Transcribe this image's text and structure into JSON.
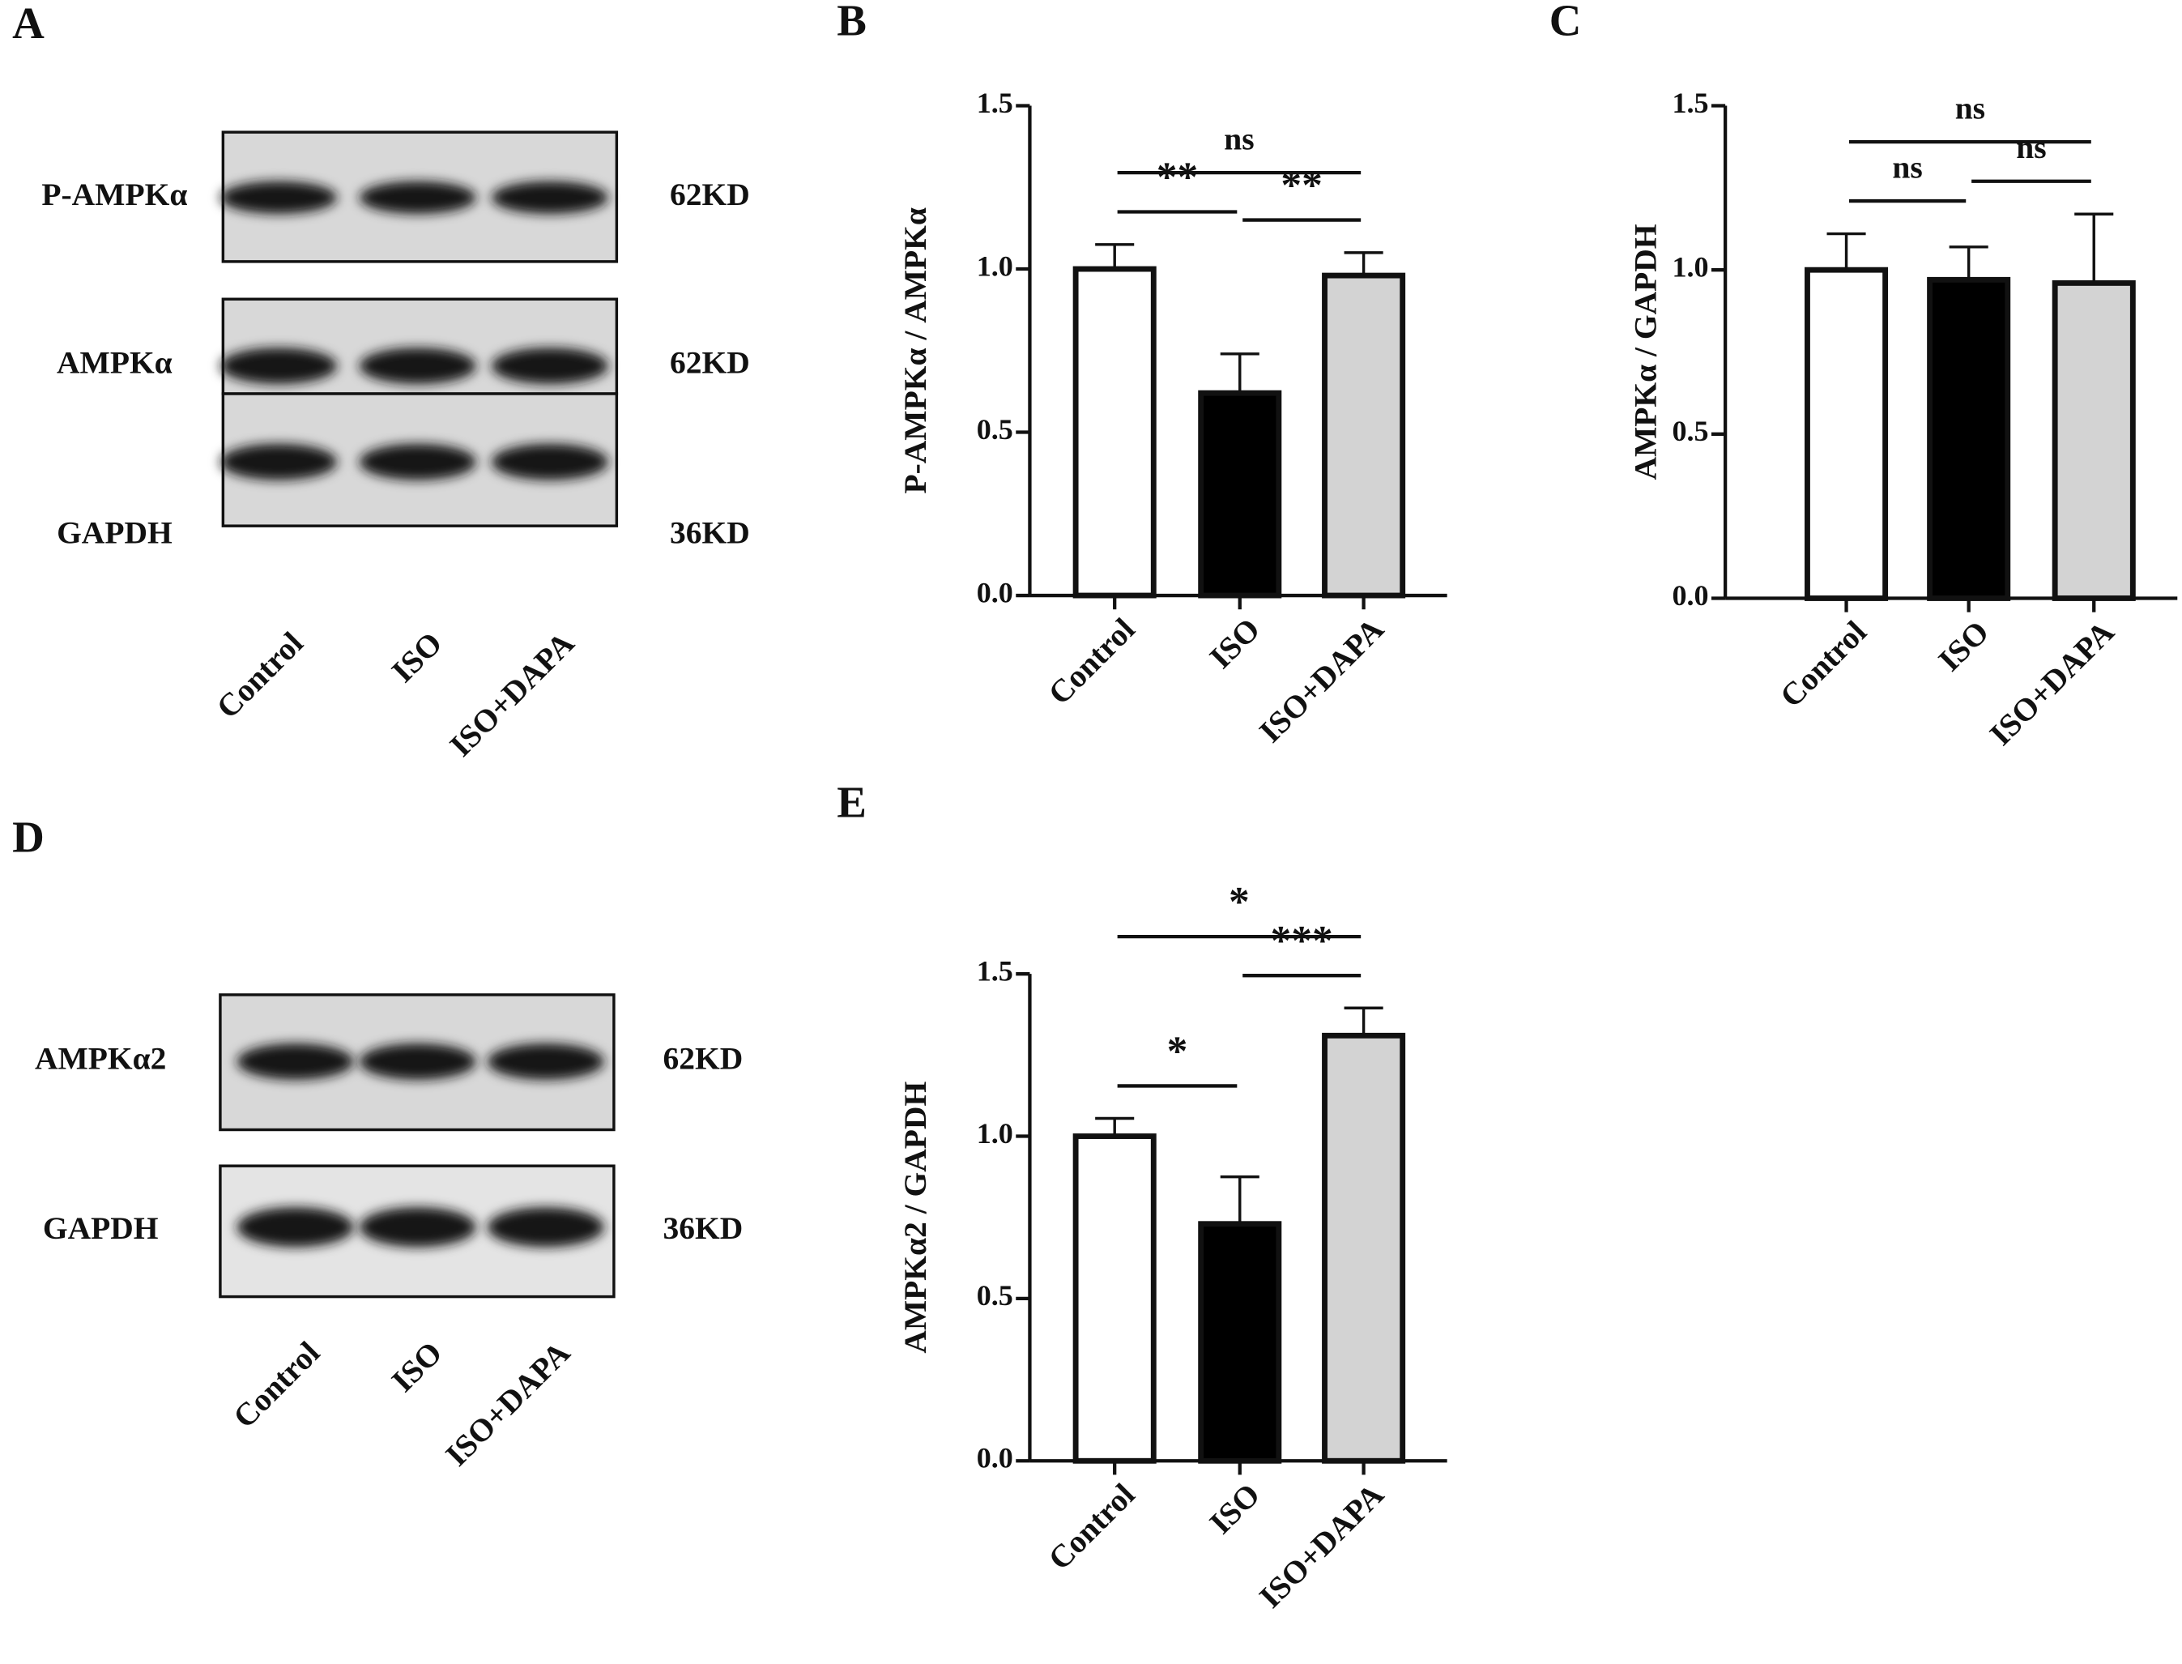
{
  "panel_labels": [
    "A",
    "B",
    "C",
    "D",
    "E"
  ],
  "blots": [
    {
      "rows": [
        {
          "label": "P-AMPKα",
          "size": "62KD"
        },
        {
          "label": "AMPKα",
          "size": "62KD"
        },
        {
          "label": "GAPDH",
          "size": "36KD"
        }
      ],
      "lanes": [
        "Control",
        "ISO",
        "ISO+DAPA"
      ]
    },
    {
      "rows": [
        {
          "label": "AMPKα2",
          "size": "62KD"
        },
        {
          "label": "GAPDH",
          "size": "36KD"
        }
      ],
      "lanes": [
        "Control",
        "ISO",
        "ISO+DAPA"
      ]
    }
  ],
  "chart_data": [
    {
      "type": "bar",
      "ylabel": "P-AMPKα / AMPKα",
      "categories": [
        "Control",
        "ISO",
        "ISO+DAPA"
      ],
      "values": [
        1.0,
        0.62,
        0.98
      ],
      "errors": [
        0.075,
        0.12,
        0.07
      ],
      "colors": [
        "#ffffff",
        "#000000",
        "#d3d3d3"
      ],
      "ylim": [
        0,
        1.5
      ],
      "yticks": [
        {
          "value": 0,
          "label": "0.0"
        },
        0.5,
        {
          "value": 1,
          "label": "1.0"
        },
        1.5
      ],
      "significance": [
        {
          "label": "**",
          "groups": [
            0,
            1
          ]
        },
        {
          "label": "**",
          "groups": [
            1,
            2
          ]
        },
        {
          "label": "ns",
          "groups": [
            0,
            2
          ]
        }
      ]
    },
    {
      "type": "bar",
      "ylabel": "AMPKα / GAPDH",
      "categories": [
        "Control",
        "ISO",
        "ISO+DAPA"
      ],
      "values": [
        1.0,
        0.97,
        0.96
      ],
      "errors": [
        0.11,
        0.1,
        0.21
      ],
      "colors": [
        "#ffffff",
        "#000000",
        "#d3d3d3"
      ],
      "ylim": [
        0,
        1.5
      ],
      "yticks": [
        {
          "value": 0,
          "label": "0.0"
        },
        0.5,
        {
          "value": 1,
          "label": "1.0"
        },
        1.5
      ],
      "significance": [
        {
          "label": "ns",
          "groups": [
            0,
            1
          ]
        },
        {
          "label": "ns",
          "groups": [
            1,
            2
          ]
        },
        {
          "label": "ns",
          "groups": [
            0,
            2
          ]
        }
      ]
    },
    {
      "type": "bar",
      "ylabel": "AMPKα2 / GAPDH",
      "categories": [
        "Control",
        "ISO",
        "ISO+DAPA"
      ],
      "values": [
        1.0,
        0.73,
        1.31
      ],
      "errors": [
        0.055,
        0.145,
        0.085
      ],
      "colors": [
        "#ffffff",
        "#000000",
        "#d3d3d3"
      ],
      "ylim": [
        0,
        1.5
      ],
      "yticks": [
        {
          "value": 0,
          "label": "0.0"
        },
        0.5,
        {
          "value": 1,
          "label": "1.0"
        },
        1.5
      ],
      "significance": [
        {
          "label": "*",
          "groups": [
            0,
            1
          ]
        },
        {
          "label": "***",
          "groups": [
            1,
            2
          ]
        },
        {
          "label": "*",
          "groups": [
            0,
            2
          ]
        }
      ]
    }
  ]
}
